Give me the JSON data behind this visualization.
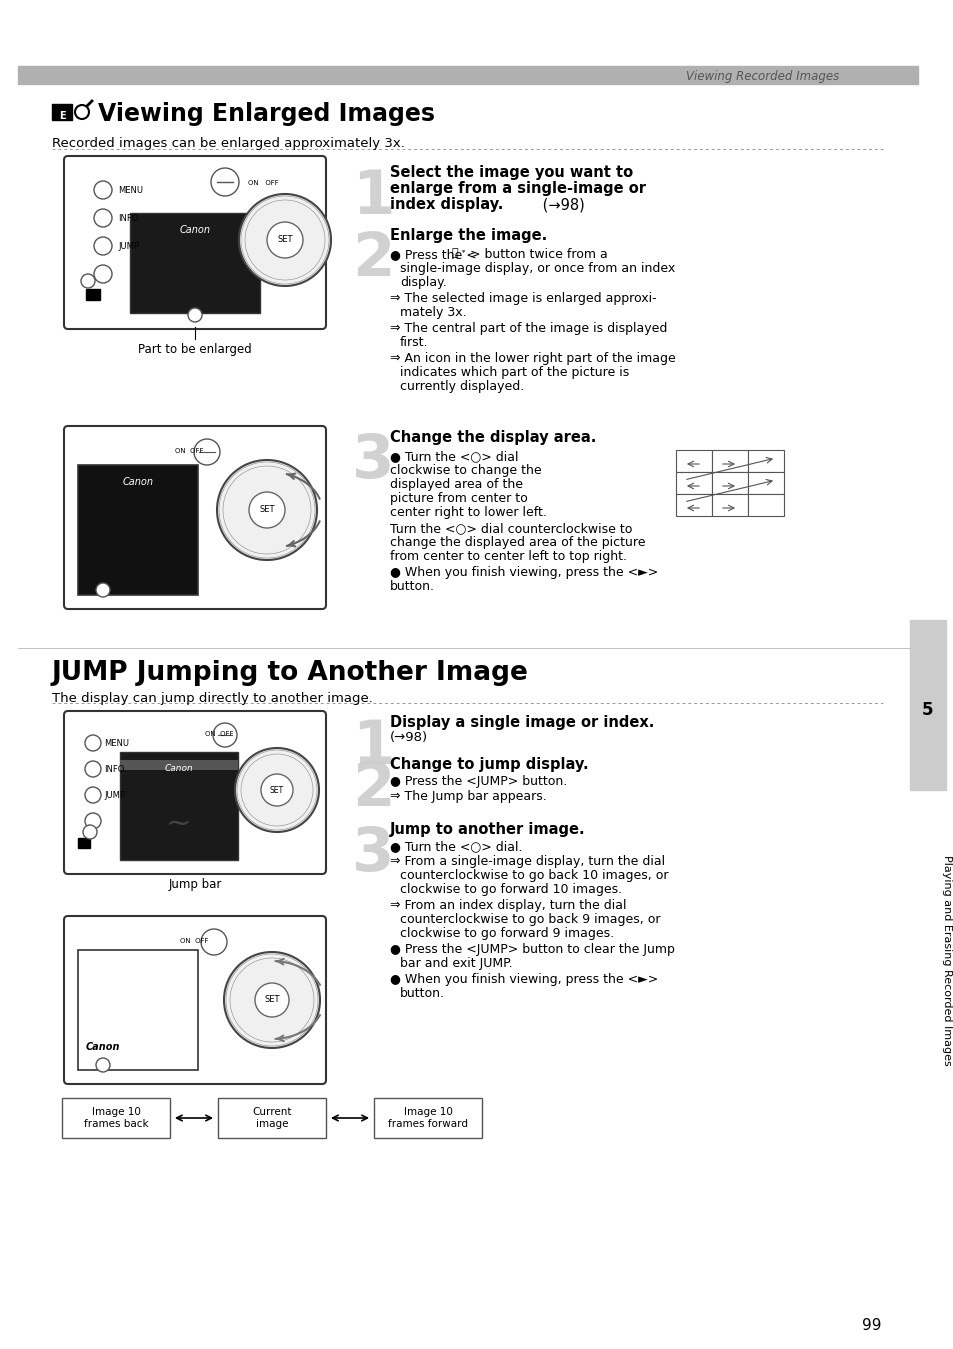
{
  "page_bg": "#ffffff",
  "header_italic": "Viewing Recorded Images",
  "header_band_color": "#aaaaaa",
  "section1_title": "  Viewing Enlarged Images",
  "section1_subtitle": "Recorded images can be enlarged approximately 3x.",
  "step1_title": "Select the image you want to enlarge from a single-image or index display.",
  "step1_ref": "(→98)",
  "step2_title": "Enlarge the image.",
  "step2_b1": "● Press the <⬛ᵠ> button twice from a single-image display, or once from an index display.",
  "step2_b2": "⇒ The selected image is enlarged approximately 3x.",
  "step2_b3": "⇒ The central part of the image is displayed first.",
  "step2_b4": "⇒ An icon in the lower right part of the image indicates which part of the picture is currently displayed.",
  "step3_title": "Change the display area.",
  "step3_b1": "● Turn the <○> dial clockwise to change the displayed area of the picture from center to center right to lower left.",
  "step3_b2": "Turn the <○> dial counterclockwise to change the displayed area of the picture from center to center left to top right.",
  "step3_b3": "● When you finish viewing, press the <►> button.",
  "caption1": "Part to be enlarged",
  "section2_title": "JUMP Jumping to Another Image",
  "section2_subtitle": "The display can jump directly to another image.",
  "jump_step1_title": "Display a single image or index.",
  "jump_step1_ref": "(→98)",
  "jump_step2_title": "Change to jump display.",
  "jump_step2_b1": "● Press the <JUMP> button.",
  "jump_step2_b2": "⇒ The Jump bar appears.",
  "jump_step3_title": "Jump to another image.",
  "jump_step3_b1": "● Turn the <○> dial.",
  "jump_step3_b2": "⇒ From a single-image display, turn the dial counterclockwise to go back 10 images, or clockwise to go forward 10 images.",
  "jump_step3_b3": "⇒ From an index display, turn the dial counterclockwise to go back 9 images, or clockwise to go forward 9 images.",
  "jump_step3_b4": "● Press the <JUMP> button to clear the Jump bar and exit JUMP.",
  "jump_step3_b5": "● When you finish viewing, press the <►> button.",
  "caption2": "Jump bar",
  "side_label": "Playing and Erasing Recorded Images",
  "side_number": "5",
  "page_number": "99",
  "bottom_label1": "Image 10\nframes back",
  "bottom_label2": "Current\nimage",
  "bottom_label3": "Image 10\nframes forward"
}
